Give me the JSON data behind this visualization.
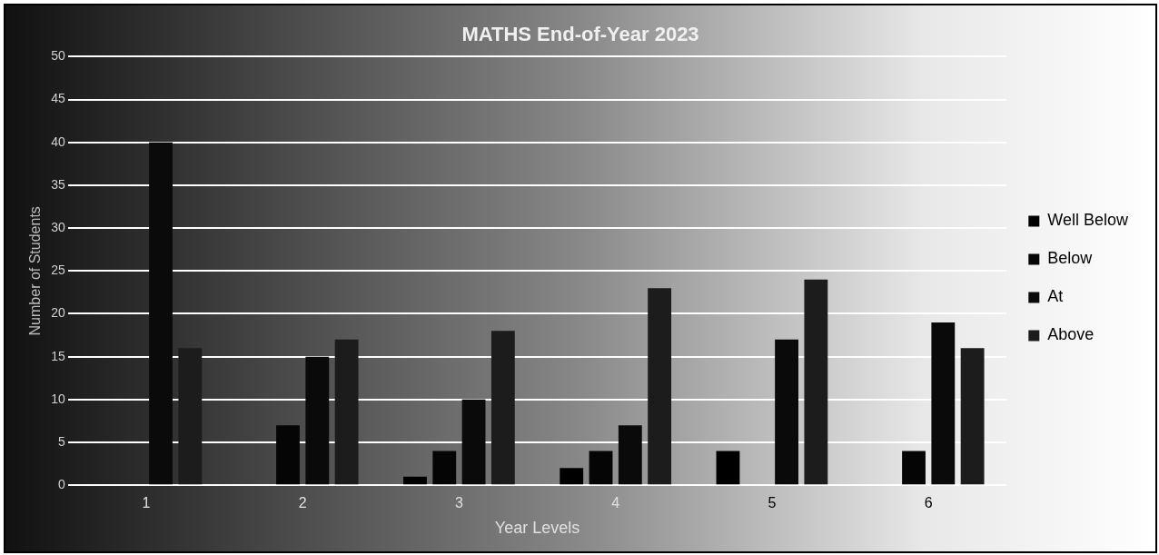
{
  "chart_data": {
    "type": "bar",
    "title": "MATHS End-of-Year 2023",
    "xlabel": "Year Levels",
    "ylabel": "Number of Students",
    "categories": [
      "1",
      "2",
      "3",
      "4",
      "5",
      "6"
    ],
    "series": [
      {
        "name": "Well Below",
        "color": "#000000",
        "values": [
          0,
          0,
          1,
          2,
          4,
          0
        ]
      },
      {
        "name": "Below",
        "color": "#050505",
        "values": [
          0,
          7,
          4,
          4,
          0,
          4
        ]
      },
      {
        "name": "At",
        "color": "#0a0a0a",
        "values": [
          40,
          15,
          10,
          7,
          17,
          19
        ]
      },
      {
        "name": "Above",
        "color": "#1c1c1c",
        "values": [
          16,
          17,
          18,
          23,
          24,
          16
        ]
      }
    ],
    "ylim": [
      0,
      50
    ],
    "yticks": [
      0,
      5,
      10,
      15,
      20,
      25,
      30,
      35,
      40,
      45,
      50
    ],
    "grid": "y",
    "legend": "right"
  }
}
